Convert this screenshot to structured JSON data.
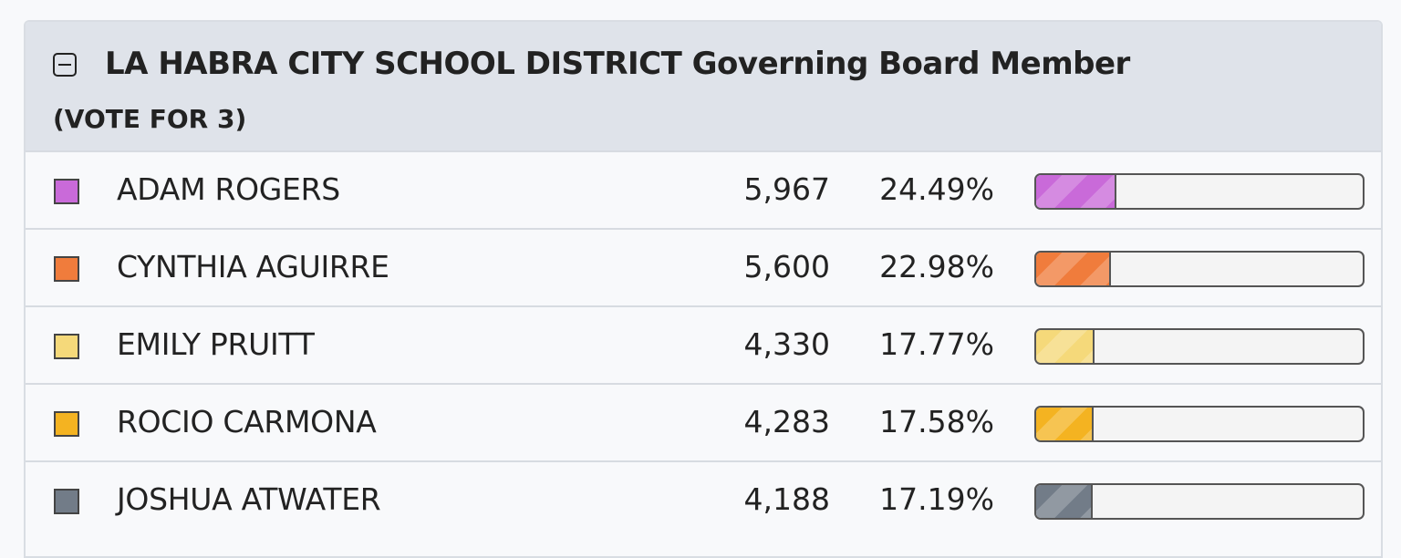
{
  "contest": {
    "title": "LA HABRA CITY SCHOOL DISTRICT Governing Board Member",
    "subtitle": "(VOTE FOR 3)"
  },
  "candidates": [
    {
      "name": "ADAM ROGERS",
      "votes": "5,967",
      "percent": "24.49%",
      "share": 0.2449,
      "color": "#c96ad9"
    },
    {
      "name": "CYNTHIA AGUIRRE",
      "votes": "5,600",
      "percent": "22.98%",
      "share": 0.2298,
      "color": "#f07c3c"
    },
    {
      "name": "EMILY PRUITT",
      "votes": "4,330",
      "percent": "17.77%",
      "share": 0.1777,
      "color": "#f5d97a"
    },
    {
      "name": "ROCIO CARMONA",
      "votes": "4,283",
      "percent": "17.58%",
      "share": 0.1758,
      "color": "#f4b321"
    },
    {
      "name": "JOSHUA ATWATER",
      "votes": "4,188",
      "percent": "17.19%",
      "share": 0.1719,
      "color": "#727c88"
    }
  ]
}
